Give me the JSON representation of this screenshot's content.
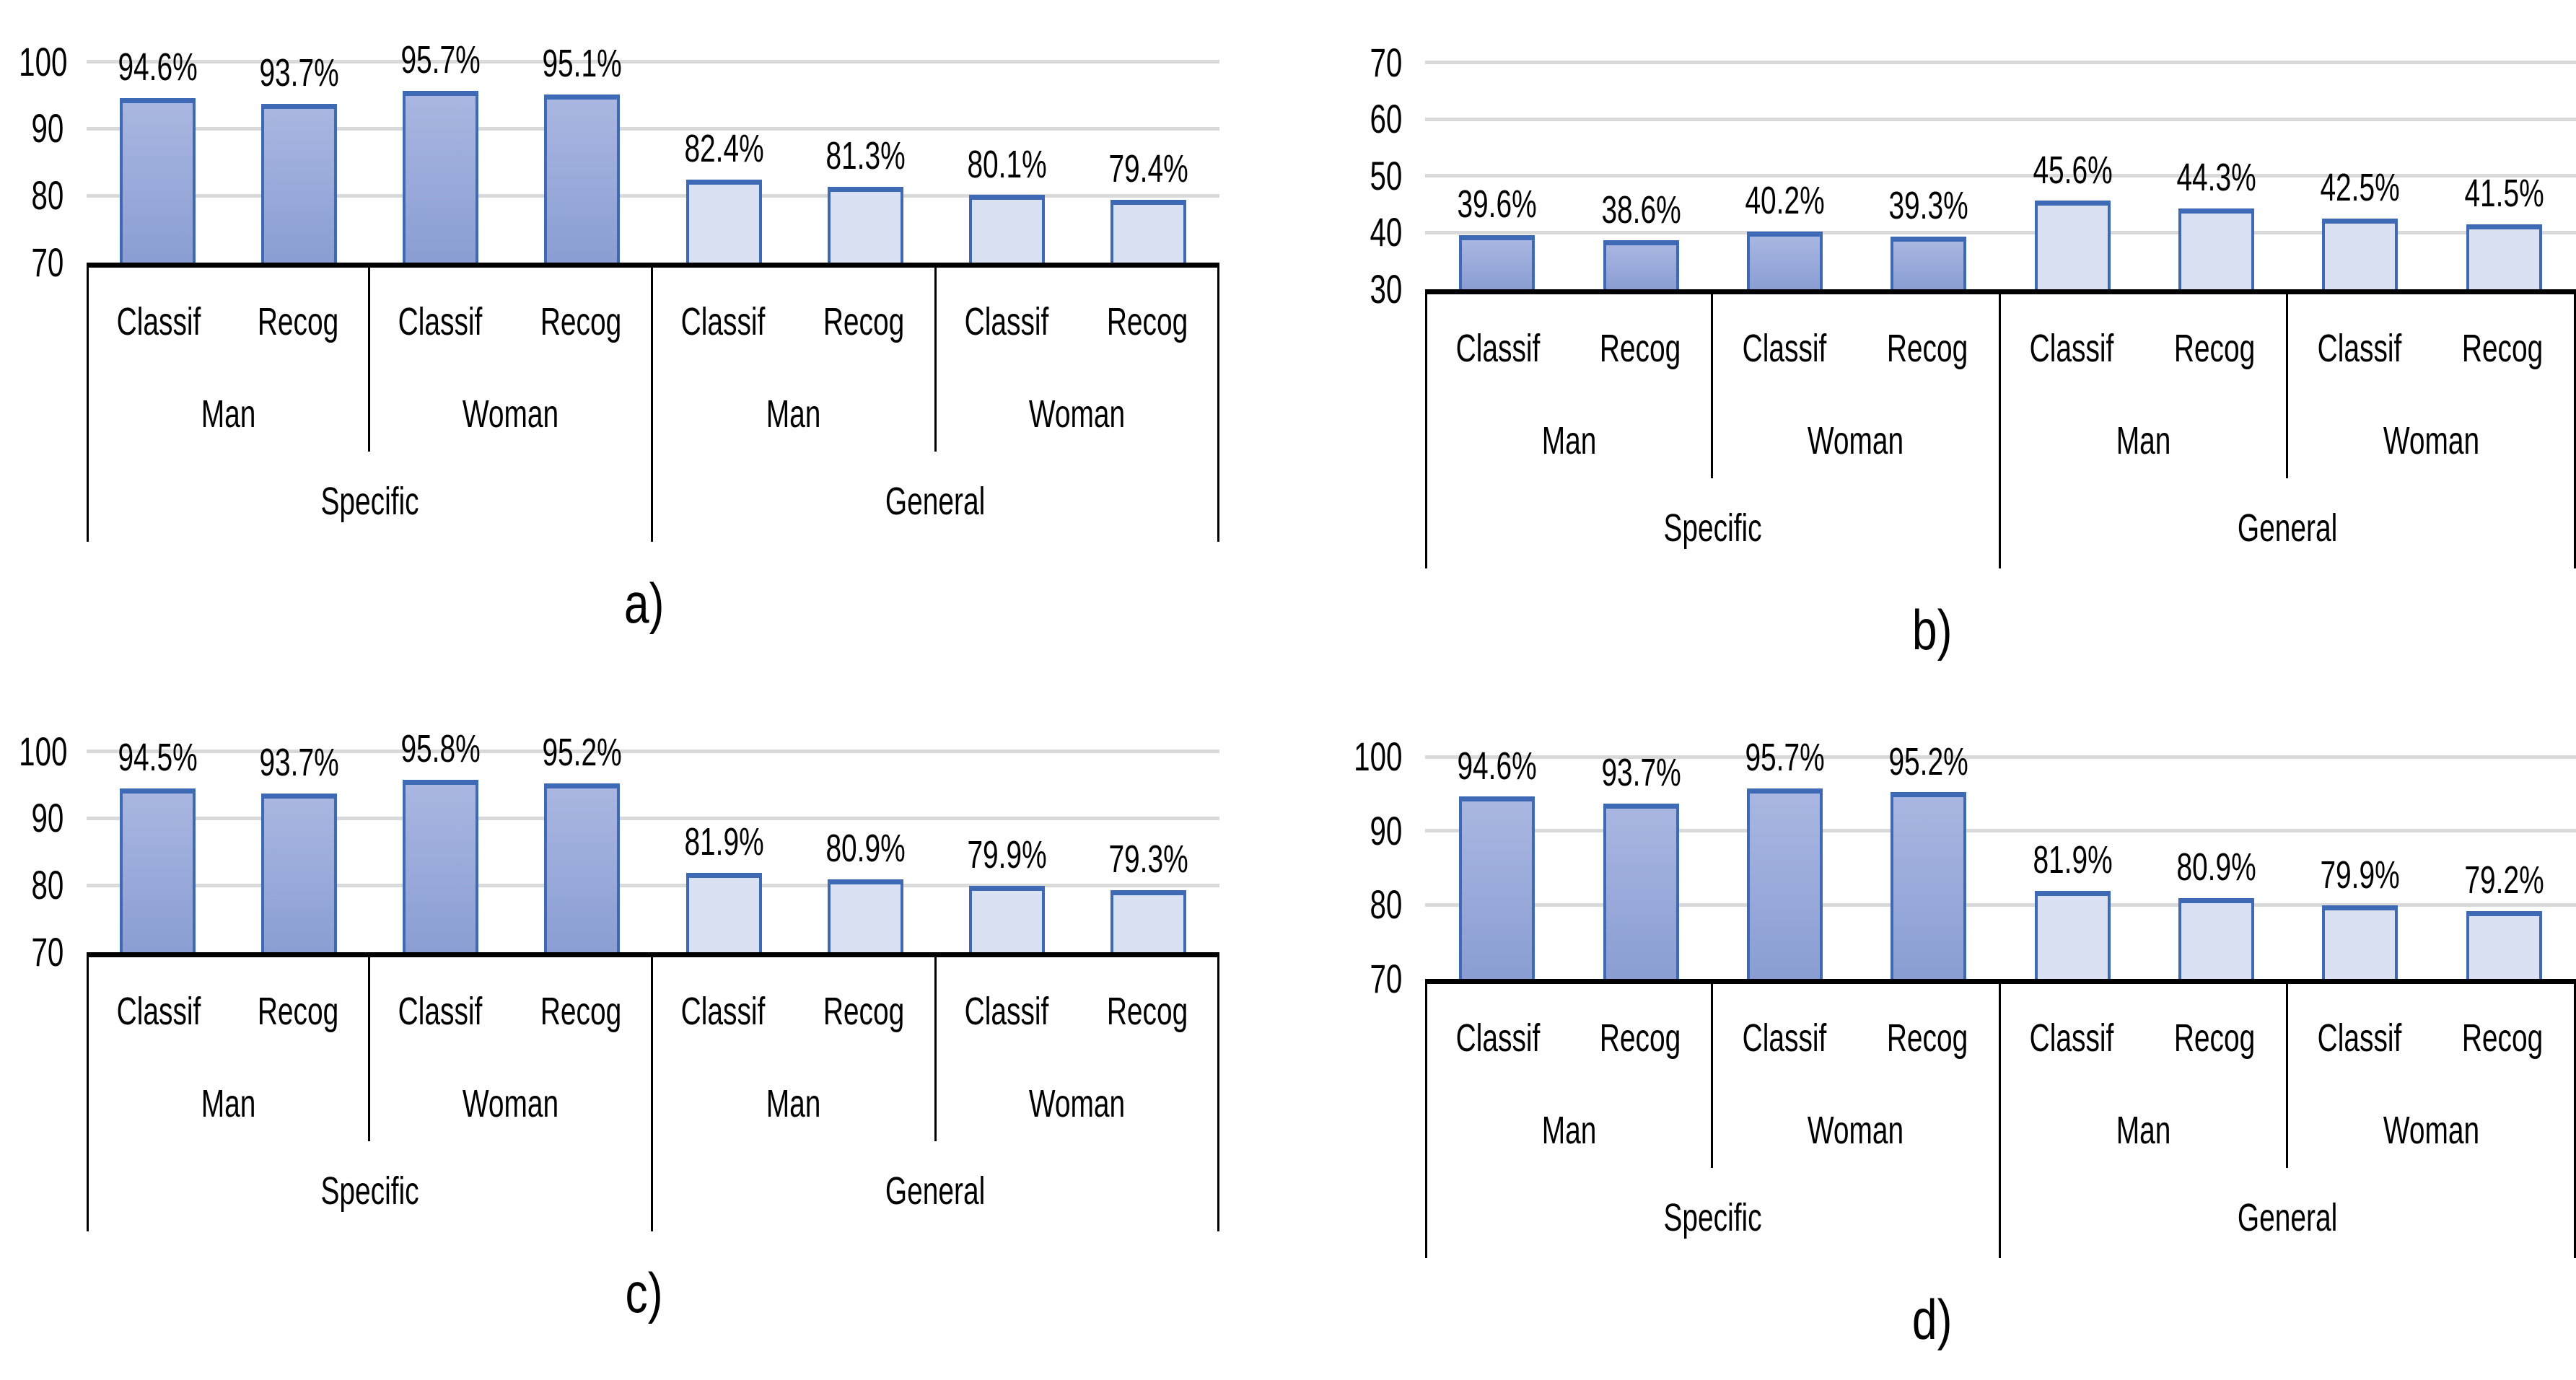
{
  "figure": {
    "background": "#FFFFFF",
    "panel_letters": [
      "a)",
      "b)",
      "c)",
      "d)"
    ]
  },
  "colors": {
    "bar_border": "#3E6AB5",
    "specific_gradient_top": "#A9B6E1",
    "specific_gradient_bottom": "#8A9ED3",
    "general_fill": "#D9E1F2",
    "gridline": "#D9D9D9",
    "axis_baseline": "#000000",
    "text": "#000000"
  },
  "chart_data": [
    {
      "id": "a",
      "caption": "a)",
      "type": "bar",
      "grid": true,
      "legend": "none",
      "ylim": [
        70,
        107.5
      ],
      "yticks": [
        70,
        80,
        90,
        100
      ],
      "values": [
        94.6,
        93.7,
        95.7,
        95.1,
        82.4,
        81.3,
        80.1,
        79.4
      ],
      "labels": [
        "94.6%",
        "93.7%",
        "95.7%",
        "95.1%",
        "82.4%",
        "81.3%",
        "80.1%",
        "79.4%"
      ],
      "bar_styles": [
        "specific",
        "specific",
        "specific",
        "specific",
        "general",
        "general",
        "general",
        "general"
      ],
      "x_axis": [
        {
          "label": "Specific",
          "groups": [
            {
              "label": "Man",
              "slots": [
                "Classif",
                "Recog"
              ]
            },
            {
              "label": "Woman",
              "slots": [
                "Classif",
                "Recog"
              ]
            }
          ]
        },
        {
          "label": "General",
          "groups": [
            {
              "label": "Man",
              "slots": [
                "Classif",
                "Recog"
              ]
            },
            {
              "label": "Woman",
              "slots": [
                "Classif",
                "Recog"
              ]
            }
          ]
        }
      ]
    },
    {
      "id": "b",
      "caption": "b)",
      "type": "bar",
      "grid": true,
      "legend": "none",
      "ylim": [
        30,
        79
      ],
      "yticks": [
        30,
        40,
        50,
        60,
        70
      ],
      "values": [
        39.6,
        38.6,
        40.2,
        39.3,
        45.6,
        44.3,
        42.5,
        41.5
      ],
      "labels": [
        "39.6%",
        "38.6%",
        "40.2%",
        "39.3%",
        "45.6%",
        "44.3%",
        "42.5%",
        "41.5%"
      ],
      "bar_styles": [
        "specific",
        "specific",
        "specific",
        "specific",
        "general",
        "general",
        "general",
        "general"
      ],
      "x_axis": [
        {
          "label": "Specific",
          "groups": [
            {
              "label": "Man",
              "slots": [
                "Classif",
                "Recog"
              ]
            },
            {
              "label": "Woman",
              "slots": [
                "Classif",
                "Recog"
              ]
            }
          ]
        },
        {
          "label": "General",
          "groups": [
            {
              "label": "Man",
              "slots": [
                "Classif",
                "Recog"
              ]
            },
            {
              "label": "Woman",
              "slots": [
                "Classif",
                "Recog"
              ]
            }
          ]
        }
      ]
    },
    {
      "id": "c",
      "caption": "c)",
      "type": "bar",
      "grid": true,
      "legend": "none",
      "ylim": [
        70,
        107.5
      ],
      "yticks": [
        70,
        80,
        90,
        100
      ],
      "values": [
        94.5,
        93.7,
        95.8,
        95.2,
        81.9,
        80.9,
        79.9,
        79.3
      ],
      "labels": [
        "94.5%",
        "93.7%",
        "95.8%",
        "95.2%",
        "81.9%",
        "80.9%",
        "79.9%",
        "79.3%"
      ],
      "bar_styles": [
        "specific",
        "specific",
        "specific",
        "specific",
        "general",
        "general",
        "general",
        "general"
      ],
      "x_axis": [
        {
          "label": "Specific",
          "groups": [
            {
              "label": "Man",
              "slots": [
                "Classif",
                "Recog"
              ]
            },
            {
              "label": "Woman",
              "slots": [
                "Classif",
                "Recog"
              ]
            }
          ]
        },
        {
          "label": "General",
          "groups": [
            {
              "label": "Man",
              "slots": [
                "Classif",
                "Recog"
              ]
            },
            {
              "label": "Woman",
              "slots": [
                "Classif",
                "Recog"
              ]
            }
          ]
        }
      ]
    },
    {
      "id": "d",
      "caption": "d)",
      "type": "bar",
      "grid": true,
      "legend": "none",
      "ylim": [
        70,
        107.5
      ],
      "yticks": [
        70,
        80,
        90,
        100
      ],
      "values": [
        94.6,
        93.7,
        95.7,
        95.2,
        81.9,
        80.9,
        79.9,
        79.2
      ],
      "labels": [
        "94.6%",
        "93.7%",
        "95.7%",
        "95.2%",
        "81.9%",
        "80.9%",
        "79.9%",
        "79.2%"
      ],
      "bar_styles": [
        "specific",
        "specific",
        "specific",
        "specific",
        "general",
        "general",
        "general",
        "general"
      ],
      "x_axis": [
        {
          "label": "Specific",
          "groups": [
            {
              "label": "Man",
              "slots": [
                "Classif",
                "Recog"
              ]
            },
            {
              "label": "Woman",
              "slots": [
                "Classif",
                "Recog"
              ]
            }
          ]
        },
        {
          "label": "General",
          "groups": [
            {
              "label": "Man",
              "slots": [
                "Classif",
                "Recog"
              ]
            },
            {
              "label": "Woman",
              "slots": [
                "Classif",
                "Recog"
              ]
            }
          ]
        }
      ]
    }
  ]
}
